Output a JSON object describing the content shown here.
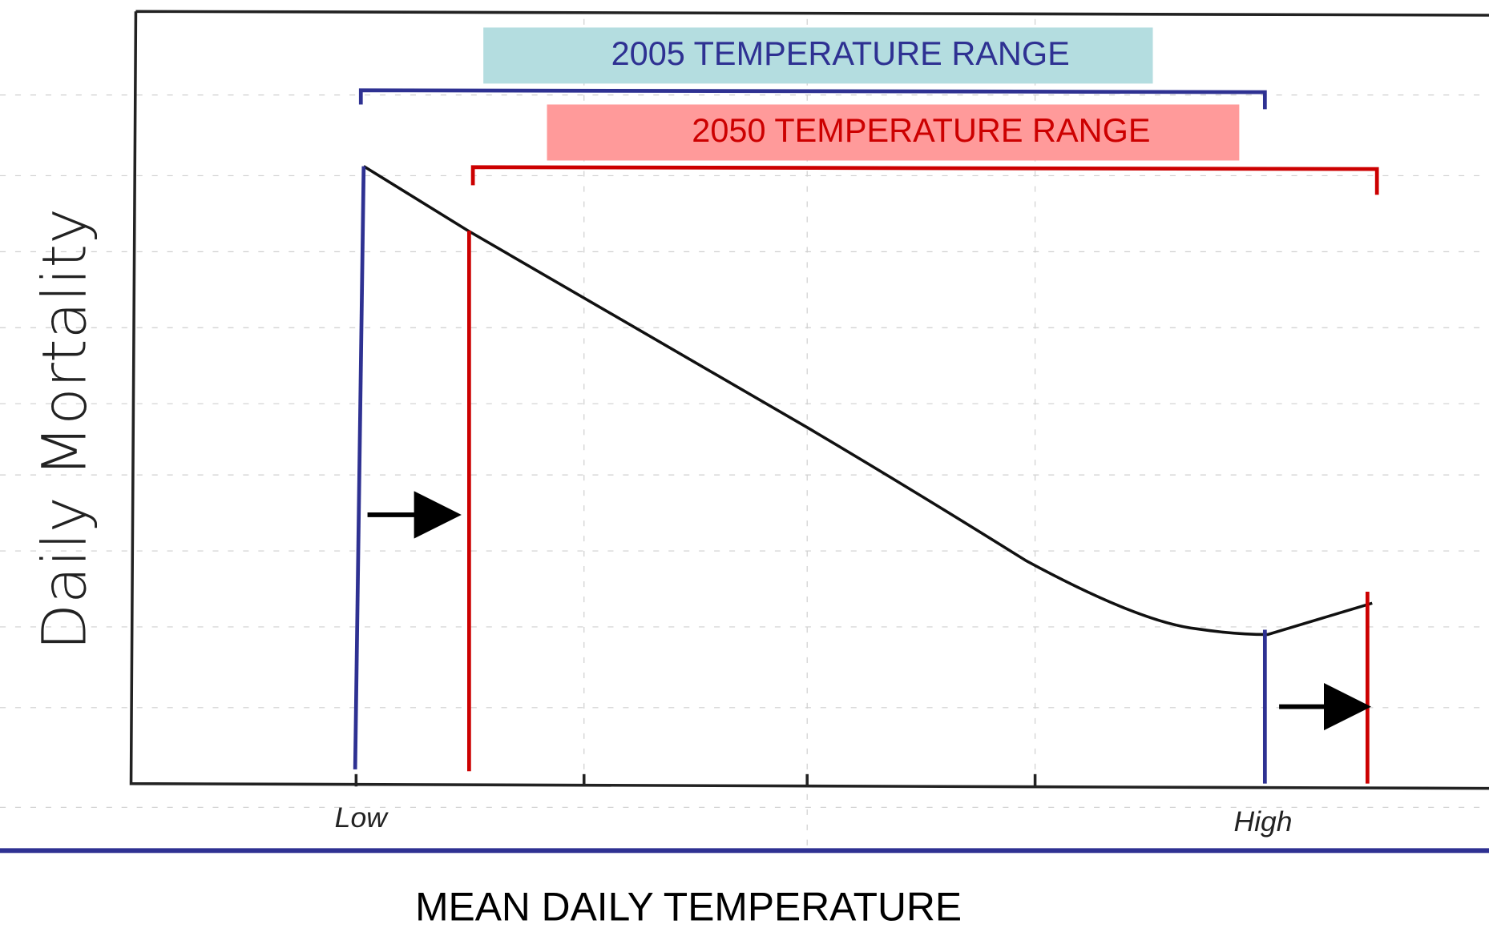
{
  "ranges": [
    {
      "label": "2005 TEMPERATURE RANGE"
    },
    {
      "label": "2050 TEMPERATURE RANGE"
    }
  ],
  "y_axis_label": "Daily Mortality",
  "x_axis_labels": [
    "Low",
    "High"
  ],
  "x_axis_title": "MEAN DAILY TEMPERATURE"
}
